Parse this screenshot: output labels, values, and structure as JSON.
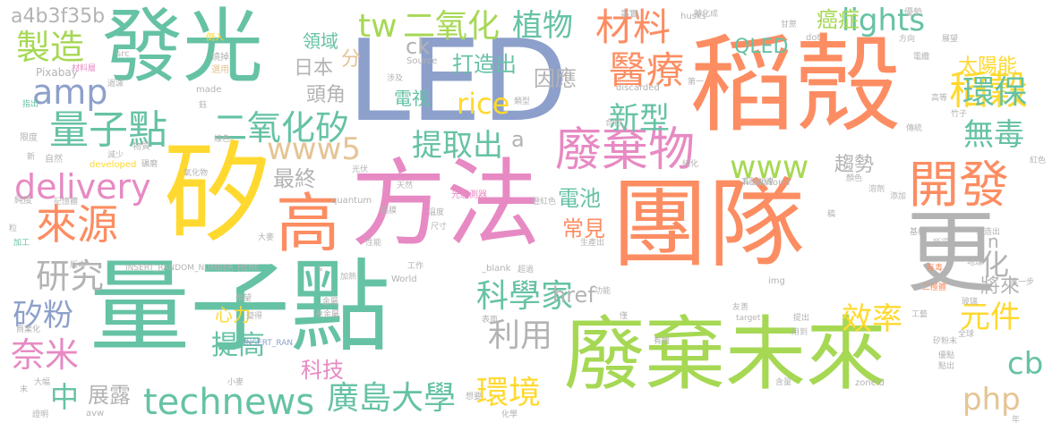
{
  "colors": {
    "green": "#66c2a5",
    "orange": "#fc8d62",
    "blue": "#8da0cb",
    "pink": "#e78ac3",
    "lime": "#a6d854",
    "yellow": "#ffd92f",
    "tan": "#e5c494",
    "gray": "#b3b3b3",
    "background": "#ffffff"
  },
  "words": [
    {
      "text": "團隊",
      "color": "orange"
    },
    {
      "text": "量子點",
      "color": "green"
    },
    {
      "text": "LED",
      "color": "blue"
    },
    {
      "text": "稻殼",
      "color": "orange"
    },
    {
      "text": "廢棄未來",
      "color": "lime"
    },
    {
      "text": "方法",
      "color": "pink"
    },
    {
      "text": "矽",
      "color": "yellow"
    },
    {
      "text": "發光",
      "color": "green"
    },
    {
      "text": "更",
      "color": "gray"
    },
    {
      "text": "高",
      "color": "orange"
    },
    {
      "text": "廢棄物",
      "color": "pink"
    },
    {
      "text": "開發",
      "color": "orange"
    },
    {
      "text": "來源",
      "color": "orange"
    },
    {
      "text": "量子點",
      "color": "green"
    },
    {
      "text": "technews",
      "color": "green"
    },
    {
      "text": "醫療",
      "color": "orange"
    },
    {
      "text": "材料",
      "color": "orange"
    },
    {
      "text": "稻穀",
      "color": "yellow"
    },
    {
      "text": "二氧化矽",
      "color": "green"
    },
    {
      "text": "delivery",
      "color": "pink"
    },
    {
      "text": "amp",
      "color": "blue"
    },
    {
      "text": "製造",
      "color": "lime"
    },
    {
      "text": "www5",
      "color": "tan"
    },
    {
      "text": "二氧化",
      "color": "lime"
    },
    {
      "text": "tw",
      "color": "lime"
    },
    {
      "text": "植物",
      "color": "green"
    },
    {
      "text": "提取出",
      "color": "green"
    },
    {
      "text": "科學家",
      "color": "green"
    },
    {
      "text": "廣島大學",
      "color": "green"
    },
    {
      "text": "環境",
      "color": "yellow"
    },
    {
      "text": "www",
      "color": "lime"
    },
    {
      "text": "lights",
      "color": "green"
    },
    {
      "text": "環保",
      "color": "green"
    },
    {
      "text": "無毒",
      "color": "green"
    },
    {
      "text": "php",
      "color": "tan"
    },
    {
      "text": "cb",
      "color": "green"
    },
    {
      "text": "奈米",
      "color": "pink"
    },
    {
      "text": "研究",
      "color": "gray"
    },
    {
      "text": "矽粉",
      "color": "blue"
    },
    {
      "text": "新型",
      "color": "green"
    },
    {
      "text": "利用",
      "color": "gray"
    },
    {
      "text": "效率",
      "color": "yellow"
    },
    {
      "text": "元件",
      "color": "yellow"
    },
    {
      "text": "rice",
      "color": "yellow"
    },
    {
      "text": "化",
      "color": "gray"
    },
    {
      "text": "中",
      "color": "green"
    },
    {
      "text": "提高",
      "color": "green"
    },
    {
      "text": "打造出",
      "color": "green"
    },
    {
      "text": "因應",
      "color": "gray"
    },
    {
      "text": "最終",
      "color": "gray"
    },
    {
      "text": "href",
      "color": "gray"
    },
    {
      "text": "QLED",
      "color": "green"
    },
    {
      "text": "太陽能",
      "color": "yellow"
    },
    {
      "text": "電池",
      "color": "green"
    },
    {
      "text": "常見",
      "color": "orange"
    },
    {
      "text": "趨勢",
      "color": "gray"
    },
    {
      "text": "科技",
      "color": "pink"
    },
    {
      "text": "展露",
      "color": "gray"
    },
    {
      "text": "頭角",
      "color": "gray"
    },
    {
      "text": "日本",
      "color": "gray"
    },
    {
      "text": "電視",
      "color": "green"
    },
    {
      "text": "領域",
      "color": "green"
    },
    {
      "text": "將來",
      "color": "gray"
    },
    {
      "text": "心力",
      "color": "yellow"
    },
    {
      "text": "癌症",
      "color": "lime"
    },
    {
      "text": "a4b3f35b",
      "color": "gray"
    },
    {
      "text": "ck",
      "color": "gray"
    },
    {
      "text": "分",
      "color": "tan"
    },
    {
      "text": "a",
      "color": "gray"
    },
    {
      "text": "n",
      "color": "gray"
    },
    {
      "text": "Pixabay",
      "color": "gray"
    },
    {
      "text": "材料層",
      "color": "pink"
    },
    {
      "text": "src",
      "color": "gray"
    },
    {
      "text": "燒掉",
      "color": "gray"
    },
    {
      "text": "倒入",
      "color": "yellow"
    },
    {
      "text": "選用",
      "color": "tan"
    },
    {
      "text": "made",
      "color": "gray"
    },
    {
      "text": "指出",
      "color": "green"
    },
    {
      "text": "限度",
      "color": "gray"
    },
    {
      "text": "自然",
      "color": "gray"
    },
    {
      "text": "物質",
      "color": "gray"
    },
    {
      "text": "developed",
      "color": "yellow"
    },
    {
      "text": "純度",
      "color": "gray"
    },
    {
      "text": "加工",
      "color": "green"
    },
    {
      "text": "記憶體",
      "color": "gray"
    },
    {
      "text": "quantum",
      "color": "gray"
    },
    {
      "text": "光感測器",
      "color": "pink"
    },
    {
      "text": "Source",
      "color": "gray"
    },
    {
      "text": "discarded",
      "color": "gray"
    },
    {
      "text": "類型",
      "color": "gray"
    },
    {
      "text": "事實",
      "color": "gray"
    },
    {
      "text": "轉化成",
      "color": "gray"
    },
    {
      "text": "husks",
      "color": "gray"
    },
    {
      "text": "甘蔗",
      "color": "gray"
    },
    {
      "text": "dot",
      "color": "gray"
    },
    {
      "text": "huskWorld",
      "color": "gray"
    },
    {
      "text": "優勢",
      "color": "gray"
    },
    {
      "text": "方向",
      "color": "gray"
    },
    {
      "text": "展望",
      "color": "gray"
    },
    {
      "text": "電纜",
      "color": "gray"
    },
    {
      "text": "竹子",
      "color": "gray"
    },
    {
      "text": "高等",
      "color": "gray"
    },
    {
      "text": "傳統",
      "color": "gray"
    },
    {
      "text": "顏色",
      "color": "gray"
    },
    {
      "text": "溶劑",
      "color": "gray"
    },
    {
      "text": "添加",
      "color": "gray"
    },
    {
      "text": "紅色",
      "color": "gray"
    },
    {
      "text": "製造出",
      "color": "gray"
    },
    {
      "text": "地球",
      "color": "gray"
    },
    {
      "text": "有毒",
      "color": "orange"
    },
    {
      "text": "二極體",
      "color": "orange"
    },
    {
      "text": "玻璃",
      "color": "gray"
    },
    {
      "text": "矽粉末",
      "color": "gray"
    },
    {
      "text": "全球",
      "color": "gray"
    },
    {
      "text": "點出",
      "color": "gray"
    },
    {
      "text": "年",
      "color": "gray"
    },
    {
      "text": "INSERT_RANDOM_NUMBER_HERE",
      "color": "gray"
    },
    {
      "text": "INSERT_RAN",
      "color": "blue"
    },
    {
      "text": "World",
      "color": "gray"
    },
    {
      "text": "_blank",
      "color": "gray"
    },
    {
      "text": "img",
      "color": "gray"
    },
    {
      "text": "target",
      "color": "gray"
    },
    {
      "text": "zoneid",
      "color": "gray"
    },
    {
      "text": "avw",
      "color": "gray"
    },
    {
      "text": "小麥",
      "color": "gray"
    },
    {
      "text": "大麥",
      "color": "gray"
    },
    {
      "text": "版本",
      "color": "gray"
    },
    {
      "text": "商業化",
      "color": "gray"
    },
    {
      "text": "大幅",
      "color": "gray"
    },
    {
      "text": "證明",
      "color": "gray"
    },
    {
      "text": "末",
      "color": "gray"
    },
    {
      "text": "想要",
      "color": "gray"
    },
    {
      "text": "化學",
      "color": "gray"
    },
    {
      "text": "表面",
      "color": "gray"
    },
    {
      "text": "重金屬",
      "color": "gray"
    },
    {
      "text": "金屬",
      "color": "gray"
    },
    {
      "text": "性能",
      "color": "gray"
    },
    {
      "text": "鋁膜",
      "color": "gray"
    },
    {
      "text": "溫度",
      "color": "gray"
    },
    {
      "text": "加熱",
      "color": "gray"
    },
    {
      "text": "工作",
      "color": "gray"
    },
    {
      "text": "超過",
      "color": "gray"
    },
    {
      "text": "功能",
      "color": "gray"
    },
    {
      "text": "尺寸",
      "color": "gray"
    },
    {
      "text": "生產出",
      "color": "gray"
    },
    {
      "text": "有機",
      "color": "gray"
    },
    {
      "text": "含量",
      "color": "gray"
    },
    {
      "text": "第一",
      "color": "gray"
    },
    {
      "text": "友善",
      "color": "gray"
    },
    {
      "text": "用到",
      "color": "gray"
    },
    {
      "text": "提出",
      "color": "gray"
    },
    {
      "text": "工藝",
      "color": "gray"
    },
    {
      "text": "進一步",
      "color": "gray"
    },
    {
      "text": "所得",
      "color": "gray"
    },
    {
      "text": "基板",
      "color": "gray"
    },
    {
      "text": "優點",
      "color": "gray"
    },
    {
      "text": "s",
      "color": "gray"
    },
    {
      "text": "天然",
      "color": "gray"
    },
    {
      "text": "減少",
      "color": "gray"
    },
    {
      "text": "碾磨",
      "color": "gray"
    },
    {
      "text": "氧化物",
      "color": "gray"
    },
    {
      "text": "光伏",
      "color": "gray"
    },
    {
      "text": "純化",
      "color": "gray"
    },
    {
      "text": "高階加速",
      "color": "gray"
    },
    {
      "text": "橙紅色",
      "color": "gray"
    },
    {
      "text": "合物",
      "color": "gray"
    },
    {
      "text": "希望",
      "color": "gray"
    },
    {
      "text": "涉及",
      "color": "gray"
    },
    {
      "text": "鈺",
      "color": "gray"
    },
    {
      "text": "過濾",
      "color": "gray"
    },
    {
      "text": "新",
      "color": "gray"
    },
    {
      "text": "粒",
      "color": "gray"
    },
    {
      "text": "變得",
      "color": "gray"
    },
    {
      "text": "綠色",
      "color": "gray"
    },
    {
      "text": "僅",
      "color": "gray"
    },
    {
      "text": "稿",
      "color": "gray"
    }
  ]
}
